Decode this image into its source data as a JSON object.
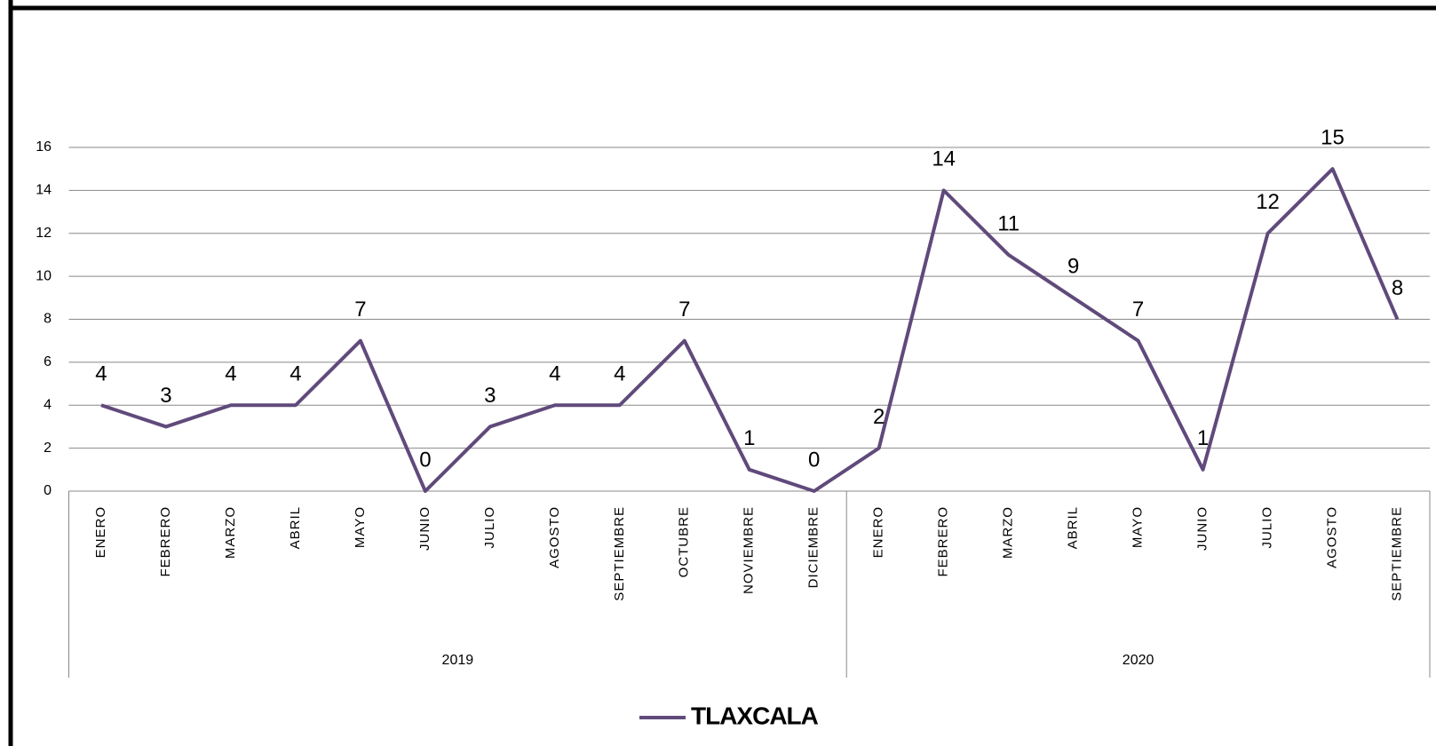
{
  "chart_data": {
    "type": "line",
    "groups": [
      {
        "label": "2019",
        "months": [
          "ENERO",
          "FEBRERO",
          "MARZO",
          "ABRIL",
          "MAYO",
          "JUNIO",
          "JULIO",
          "AGOSTO",
          "SEPTIEMBRE",
          "OCTUBRE",
          "NOVIEMBRE",
          "DICIEMBRE"
        ]
      },
      {
        "label": "2020",
        "months": [
          "ENERO",
          "FEBRERO",
          "MARZO",
          "ABRIL",
          "MAYO",
          "JUNIO",
          "JULIO",
          "AGOSTO",
          "SEPTIEMBRE"
        ]
      }
    ],
    "series": [
      {
        "name": "TLAXCALA",
        "color": "#604a7b",
        "values": [
          4,
          3,
          4,
          4,
          7,
          0,
          3,
          4,
          4,
          7,
          1,
          0,
          2,
          14,
          11,
          9,
          7,
          1,
          12,
          15,
          8
        ]
      }
    ],
    "ylim": [
      0,
      16
    ],
    "yticks": [
      0,
      2,
      4,
      6,
      8,
      10,
      12,
      14,
      16
    ],
    "grid": true,
    "legend": "bottom"
  }
}
